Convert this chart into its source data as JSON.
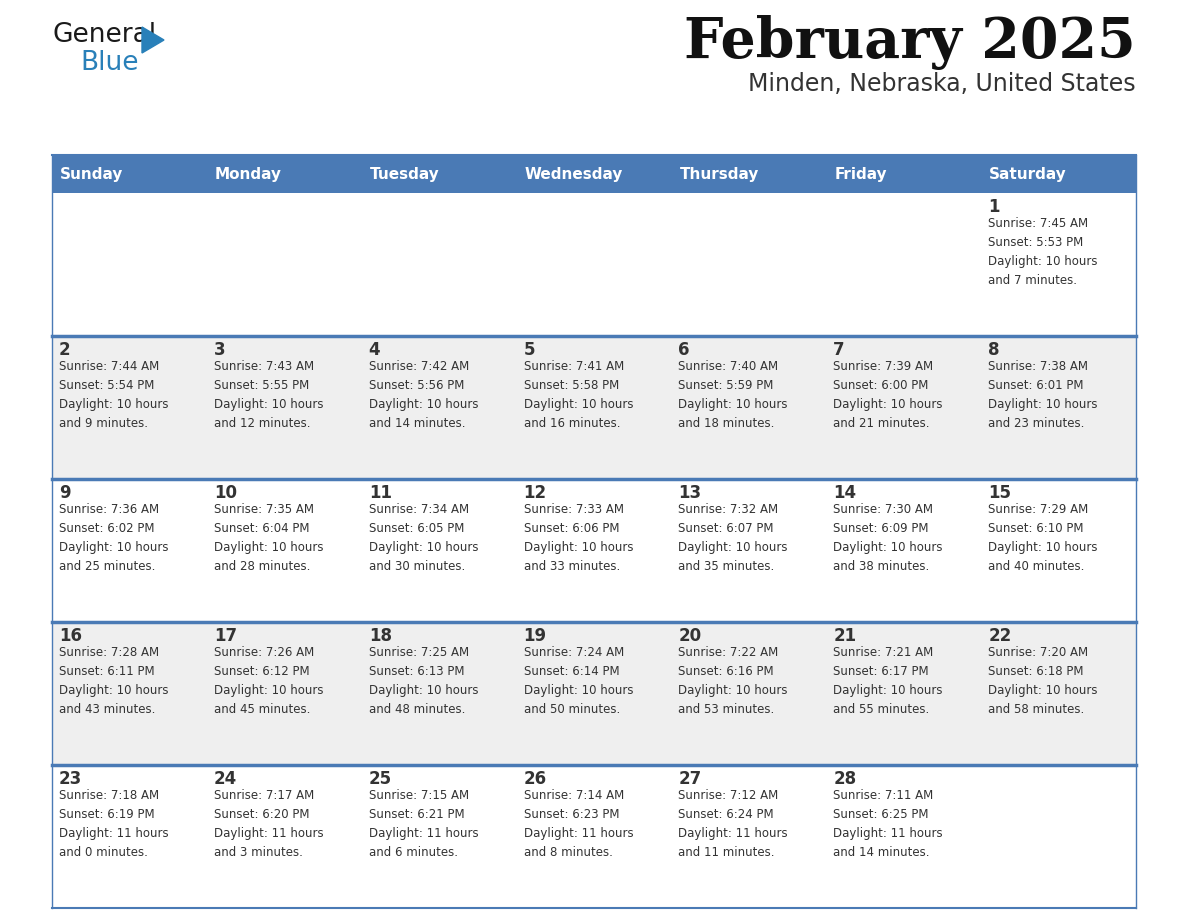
{
  "title": "February 2025",
  "subtitle": "Minden, Nebraska, United States",
  "days_of_week": [
    "Sunday",
    "Monday",
    "Tuesday",
    "Wednesday",
    "Thursday",
    "Friday",
    "Saturday"
  ],
  "header_bg": "#4a7ab5",
  "header_text": "#ffffff",
  "row_bg_light": "#ffffff",
  "row_bg_gray": "#efefef",
  "day_number_color": "#333333",
  "cell_text_color": "#333333",
  "divider_color": "#4a7ab5",
  "bg_color": "#ffffff",
  "title_color": "#111111",
  "subtitle_color": "#333333",
  "logo_general_color": "#1a1a1a",
  "logo_blue_color": "#2980b9",
  "weeks": [
    {
      "bg": "#ffffff",
      "days": [
        {
          "date": null,
          "info": null
        },
        {
          "date": null,
          "info": null
        },
        {
          "date": null,
          "info": null
        },
        {
          "date": null,
          "info": null
        },
        {
          "date": null,
          "info": null
        },
        {
          "date": null,
          "info": null
        },
        {
          "date": 1,
          "info": "Sunrise: 7:45 AM\nSunset: 5:53 PM\nDaylight: 10 hours\nand 7 minutes."
        }
      ]
    },
    {
      "bg": "#efefef",
      "days": [
        {
          "date": 2,
          "info": "Sunrise: 7:44 AM\nSunset: 5:54 PM\nDaylight: 10 hours\nand 9 minutes."
        },
        {
          "date": 3,
          "info": "Sunrise: 7:43 AM\nSunset: 5:55 PM\nDaylight: 10 hours\nand 12 minutes."
        },
        {
          "date": 4,
          "info": "Sunrise: 7:42 AM\nSunset: 5:56 PM\nDaylight: 10 hours\nand 14 minutes."
        },
        {
          "date": 5,
          "info": "Sunrise: 7:41 AM\nSunset: 5:58 PM\nDaylight: 10 hours\nand 16 minutes."
        },
        {
          "date": 6,
          "info": "Sunrise: 7:40 AM\nSunset: 5:59 PM\nDaylight: 10 hours\nand 18 minutes."
        },
        {
          "date": 7,
          "info": "Sunrise: 7:39 AM\nSunset: 6:00 PM\nDaylight: 10 hours\nand 21 minutes."
        },
        {
          "date": 8,
          "info": "Sunrise: 7:38 AM\nSunset: 6:01 PM\nDaylight: 10 hours\nand 23 minutes."
        }
      ]
    },
    {
      "bg": "#ffffff",
      "days": [
        {
          "date": 9,
          "info": "Sunrise: 7:36 AM\nSunset: 6:02 PM\nDaylight: 10 hours\nand 25 minutes."
        },
        {
          "date": 10,
          "info": "Sunrise: 7:35 AM\nSunset: 6:04 PM\nDaylight: 10 hours\nand 28 minutes."
        },
        {
          "date": 11,
          "info": "Sunrise: 7:34 AM\nSunset: 6:05 PM\nDaylight: 10 hours\nand 30 minutes."
        },
        {
          "date": 12,
          "info": "Sunrise: 7:33 AM\nSunset: 6:06 PM\nDaylight: 10 hours\nand 33 minutes."
        },
        {
          "date": 13,
          "info": "Sunrise: 7:32 AM\nSunset: 6:07 PM\nDaylight: 10 hours\nand 35 minutes."
        },
        {
          "date": 14,
          "info": "Sunrise: 7:30 AM\nSunset: 6:09 PM\nDaylight: 10 hours\nand 38 minutes."
        },
        {
          "date": 15,
          "info": "Sunrise: 7:29 AM\nSunset: 6:10 PM\nDaylight: 10 hours\nand 40 minutes."
        }
      ]
    },
    {
      "bg": "#efefef",
      "days": [
        {
          "date": 16,
          "info": "Sunrise: 7:28 AM\nSunset: 6:11 PM\nDaylight: 10 hours\nand 43 minutes."
        },
        {
          "date": 17,
          "info": "Sunrise: 7:26 AM\nSunset: 6:12 PM\nDaylight: 10 hours\nand 45 minutes."
        },
        {
          "date": 18,
          "info": "Sunrise: 7:25 AM\nSunset: 6:13 PM\nDaylight: 10 hours\nand 48 minutes."
        },
        {
          "date": 19,
          "info": "Sunrise: 7:24 AM\nSunset: 6:14 PM\nDaylight: 10 hours\nand 50 minutes."
        },
        {
          "date": 20,
          "info": "Sunrise: 7:22 AM\nSunset: 6:16 PM\nDaylight: 10 hours\nand 53 minutes."
        },
        {
          "date": 21,
          "info": "Sunrise: 7:21 AM\nSunset: 6:17 PM\nDaylight: 10 hours\nand 55 minutes."
        },
        {
          "date": 22,
          "info": "Sunrise: 7:20 AM\nSunset: 6:18 PM\nDaylight: 10 hours\nand 58 minutes."
        }
      ]
    },
    {
      "bg": "#ffffff",
      "days": [
        {
          "date": 23,
          "info": "Sunrise: 7:18 AM\nSunset: 6:19 PM\nDaylight: 11 hours\nand 0 minutes."
        },
        {
          "date": 24,
          "info": "Sunrise: 7:17 AM\nSunset: 6:20 PM\nDaylight: 11 hours\nand 3 minutes."
        },
        {
          "date": 25,
          "info": "Sunrise: 7:15 AM\nSunset: 6:21 PM\nDaylight: 11 hours\nand 6 minutes."
        },
        {
          "date": 26,
          "info": "Sunrise: 7:14 AM\nSunset: 6:23 PM\nDaylight: 11 hours\nand 8 minutes."
        },
        {
          "date": 27,
          "info": "Sunrise: 7:12 AM\nSunset: 6:24 PM\nDaylight: 11 hours\nand 11 minutes."
        },
        {
          "date": 28,
          "info": "Sunrise: 7:11 AM\nSunset: 6:25 PM\nDaylight: 11 hours\nand 14 minutes."
        },
        {
          "date": null,
          "info": null
        }
      ]
    }
  ]
}
